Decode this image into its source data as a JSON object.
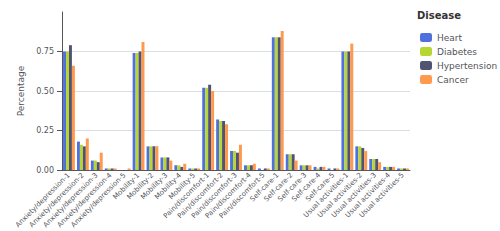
{
  "chart_data": {
    "type": "bar",
    "categories": [
      "Anxiety/depression-1",
      "Anxiety/depression-2",
      "Anxiety/depression-3",
      "Anxiety/depression-4",
      "Anxiety/depression-5",
      "Mobility-1",
      "Mobility-2",
      "Mobility-3",
      "Mobility-4",
      "Mobility-5",
      "Pain/discomfort-1",
      "Pain/discomfort-2",
      "Pain/discomfort-3",
      "Pain/discomfort-4",
      "Pain/discomfort-5",
      "Self-care-1",
      "Self-care-2",
      "Self-care-3",
      "Self-care-4",
      "Self-care-5",
      "Usual activities-1",
      "Usual activities-2",
      "Usual activities-3",
      "Usual activities-4",
      "Usual activities-5"
    ],
    "series": [
      {
        "name": "Heart",
        "values": [
          0.75,
          0.18,
          0.06,
          0.01,
          0.0,
          0.74,
          0.15,
          0.08,
          0.03,
          0.01,
          0.52,
          0.32,
          0.12,
          0.03,
          0.01,
          0.84,
          0.1,
          0.03,
          0.02,
          0.01,
          0.75,
          0.15,
          0.07,
          0.02,
          0.01
        ]
      },
      {
        "name": "Diabetes",
        "values": [
          0.75,
          0.16,
          0.06,
          0.01,
          0.0,
          0.74,
          0.15,
          0.08,
          0.03,
          0.01,
          0.52,
          0.31,
          0.12,
          0.03,
          0.0,
          0.84,
          0.1,
          0.03,
          0.01,
          0.0,
          0.75,
          0.15,
          0.07,
          0.02,
          0.01
        ]
      },
      {
        "name": "Hypertension",
        "values": [
          0.79,
          0.15,
          0.05,
          0.01,
          0.0,
          0.75,
          0.15,
          0.08,
          0.02,
          0.01,
          0.54,
          0.31,
          0.11,
          0.03,
          0.01,
          0.84,
          0.1,
          0.03,
          0.02,
          0.01,
          0.75,
          0.14,
          0.07,
          0.02,
          0.01
        ]
      },
      {
        "name": "Cancer",
        "values": [
          0.66,
          0.2,
          0.11,
          0.01,
          0.01,
          0.81,
          0.15,
          0.06,
          0.04,
          0.01,
          0.5,
          0.29,
          0.16,
          0.04,
          0.01,
          0.88,
          0.06,
          0.03,
          0.02,
          0.01,
          0.8,
          0.12,
          0.05,
          0.02,
          0.01
        ]
      }
    ],
    "ylabel": "Percentage",
    "legend_title": "Disease",
    "ylim": [
      0.0,
      1.0
    ],
    "yticks": [
      {
        "value": 0.0,
        "label": "0.00"
      },
      {
        "value": 0.25,
        "label": "0.25"
      },
      {
        "value": 0.5,
        "label": "0.50"
      },
      {
        "value": 0.75,
        "label": "0.75"
      }
    ],
    "grid": true,
    "legend": "upper right"
  }
}
